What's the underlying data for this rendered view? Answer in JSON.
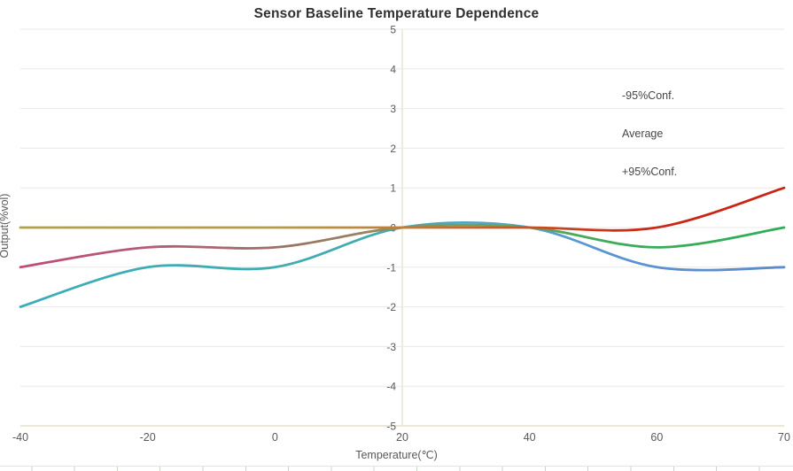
{
  "title": "Sensor Baseline Temperature Dependence",
  "chart_data": {
    "type": "line",
    "smooth": true,
    "title": "Sensor Baseline Temperature Dependence",
    "xlabel": "Temperature(℃)",
    "ylabel": "Output(%vol)",
    "categories": [
      "-40",
      "-20",
      "0",
      "20",
      "40",
      "60",
      "70"
    ],
    "y_ticks": [
      "5",
      "4",
      "3",
      "2",
      "1",
      "0",
      "-1",
      "-2",
      "-3",
      "-4",
      "-5"
    ],
    "ylim": [
      -5,
      5
    ],
    "grid": "horizontal",
    "legend_position": "right-inside",
    "series": [
      {
        "name": "-95%Conf.",
        "values": [
          -2,
          -1,
          -1,
          0,
          0,
          -1,
          -1
        ],
        "gradient": [
          {
            "offset": 0,
            "color": "#3CACBA"
          },
          {
            "offset": 0.5,
            "color": "#43ABAD"
          },
          {
            "offset": 0.63,
            "color": "#55A2CE"
          },
          {
            "offset": 0.8,
            "color": "#5C92D2"
          },
          {
            "offset": 1,
            "color": "#5E8BC8"
          }
        ]
      },
      {
        "name": "Average",
        "values": [
          -1,
          -0.5,
          -0.5,
          0,
          0,
          -0.5,
          0
        ],
        "gradient": [
          {
            "offset": 0,
            "color": "#C14A79"
          },
          {
            "offset": 0.18,
            "color": "#B25E74"
          },
          {
            "offset": 0.35,
            "color": "#9B7366"
          },
          {
            "offset": 0.5,
            "color": "#968C5B"
          },
          {
            "offset": 0.62,
            "color": "#6FA458"
          },
          {
            "offset": 0.78,
            "color": "#3BAC59"
          },
          {
            "offset": 1,
            "color": "#2FAE57"
          }
        ]
      },
      {
        "name": "+95%Conf.",
        "values": [
          0,
          0,
          0,
          0,
          0,
          0,
          1
        ],
        "gradient": [
          {
            "offset": 0,
            "color": "#B1A04C"
          },
          {
            "offset": 0.33,
            "color": "#B49C49"
          },
          {
            "offset": 0.5,
            "color": "#C07E38"
          },
          {
            "offset": 0.65,
            "color": "#C65526"
          },
          {
            "offset": 0.8,
            "color": "#CA2C18"
          },
          {
            "offset": 1,
            "color": "#CB2213"
          }
        ]
      }
    ]
  },
  "colors": {
    "background": "#ffffff",
    "grid_line": "#e9e9e9",
    "axis_line": "#ece8d9",
    "tick_text": "#595959",
    "axis_title_text": "#595959",
    "title_text": "#303030",
    "legend_text": "#464646",
    "sheet_line": "#e2e6de",
    "sheet_tick": "#ccd5ca"
  }
}
